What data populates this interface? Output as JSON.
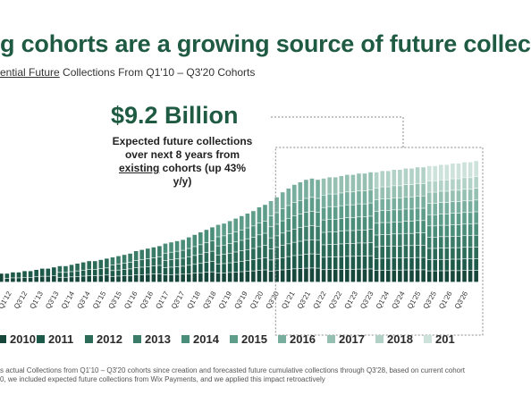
{
  "header": {
    "title": "g cohorts are a growing source of future collec",
    "subtitle_underlined": "ential Future",
    "subtitle_rest": " Collections From Q1'10 – Q3'20 Cohorts"
  },
  "callout": {
    "value": "$9.2 Billion",
    "line1": "Expected future collections over next 8 years from ",
    "line1_underlined": "existing",
    "line2": " cohorts (up 43% y/y)"
  },
  "footnote": {
    "line1": "s actual Collections from Q1'10 – Q3'20 cohorts since creation and forecasted future cumulative collections through Q3'28, based on current cohort",
    "line2": "0, we included expected future collections from Wix Payments, and we applied this impact retroactively"
  },
  "colors": {
    "c2010": "#17473a",
    "c2011": "#1e5a49",
    "c2012": "#2b6b58",
    "c2013": "#3a7c68",
    "c2014": "#4a8d79",
    "c2015": "#5e9d8a",
    "c2016": "#78ae9d",
    "c2017": "#95c0b2",
    "c2018": "#b2d2c7",
    "c2019": "#cde2da",
    "callout_line": "#888888"
  },
  "chart_data": {
    "type": "bar",
    "stacked": true,
    "grid": false,
    "legend_position": "bottom",
    "x_tick_labels": [
      "Q1'12",
      "Q3'12",
      "Q1'13",
      "Q3'13",
      "Q1'14",
      "Q3'14",
      "Q1'15",
      "Q3'15",
      "Q1'16",
      "Q3'16",
      "Q1'17",
      "Q3'17",
      "Q1'18",
      "Q3'18",
      "Q1'19",
      "Q3'19",
      "Q1'20",
      "Q3'20",
      "Q1'21",
      "Q3'21",
      "Q1'22",
      "Q3'22",
      "Q1'23",
      "Q3'23",
      "Q1'24",
      "Q3'24",
      "Q1'25",
      "Q3'25",
      "Q1'26",
      "Q3'26"
    ],
    "bar_heights_relative": [
      0.07,
      0.07,
      0.08,
      0.08,
      0.09,
      0.09,
      0.1,
      0.11,
      0.11,
      0.12,
      0.13,
      0.13,
      0.14,
      0.15,
      0.16,
      0.17,
      0.17,
      0.18,
      0.19,
      0.2,
      0.21,
      0.22,
      0.23,
      0.25,
      0.26,
      0.27,
      0.28,
      0.29,
      0.31,
      0.32,
      0.33,
      0.34,
      0.36,
      0.38,
      0.4,
      0.42,
      0.44,
      0.46,
      0.47,
      0.49,
      0.51,
      0.53,
      0.55,
      0.57,
      0.6,
      0.62,
      0.65,
      0.68,
      0.72,
      0.75,
      0.78,
      0.8,
      0.82,
      0.83,
      0.82,
      0.83,
      0.84,
      0.84,
      0.85,
      0.86,
      0.86,
      0.87,
      0.87,
      0.88,
      0.88,
      0.89,
      0.89,
      0.9,
      0.9,
      0.91,
      0.91,
      0.92,
      0.92,
      0.93,
      0.93,
      0.94,
      0.94,
      0.95,
      0.95,
      0.96,
      0.96,
      0.97
    ],
    "forecast_start_index": 47,
    "series": [
      {
        "name": "2010",
        "color_key": "c2010"
      },
      {
        "name": "2011",
        "color_key": "c2011"
      },
      {
        "name": "2012",
        "color_key": "c2012"
      },
      {
        "name": "2013",
        "color_key": "c2013"
      },
      {
        "name": "2014",
        "color_key": "c2014"
      },
      {
        "name": "2015",
        "color_key": "c2015"
      },
      {
        "name": "2016",
        "color_key": "c2016"
      },
      {
        "name": "2017",
        "color_key": "c2017"
      },
      {
        "name": "2018",
        "color_key": "c2018"
      },
      {
        "name": "201",
        "color_key": "c2019"
      }
    ]
  }
}
